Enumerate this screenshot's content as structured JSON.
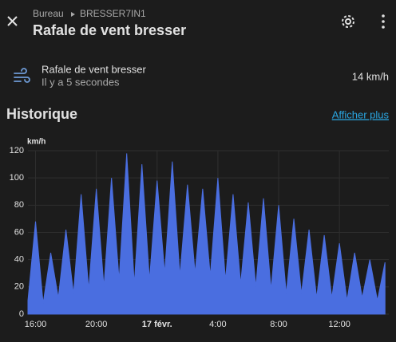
{
  "header": {
    "breadcrumb": [
      "Bureau",
      "BRESSER7IN1"
    ],
    "title": "Rafale de vent bresser"
  },
  "entity": {
    "name": "Rafale de vent bresser",
    "last_changed": "Il y a 5 secondes",
    "state": "14 km/h"
  },
  "history": {
    "title": "Historique",
    "link": "Afficher plus"
  },
  "chart_data": {
    "type": "area",
    "y_label": "km/h",
    "color": "#4a6ee0",
    "grid": true,
    "xlim": [
      15.5,
      39.25
    ],
    "xticks": [
      {
        "value": 16,
        "label": "16:00"
      },
      {
        "value": 20,
        "label": "20:00"
      },
      {
        "value": 24,
        "label": "17 févr."
      },
      {
        "value": 28,
        "label": "4:00"
      },
      {
        "value": 32,
        "label": "8:00"
      },
      {
        "value": 36,
        "label": "12:00"
      }
    ],
    "ylim": [
      0,
      120
    ],
    "yticks": [
      0,
      20,
      40,
      60,
      80,
      100,
      120
    ],
    "x": [
      15.5,
      16,
      16.5,
      17,
      17.5,
      18,
      18.5,
      19,
      19.5,
      20,
      20.5,
      21,
      21.5,
      22,
      22.5,
      23,
      23.5,
      24,
      24.5,
      25,
      25.5,
      26,
      26.5,
      27,
      27.5,
      28,
      28.5,
      29,
      29.5,
      30,
      30.5,
      31,
      31.5,
      32,
      32.5,
      33,
      33.5,
      34,
      34.5,
      35,
      35.5,
      36,
      36.5,
      37,
      37.5,
      38,
      38.5,
      39
    ],
    "values": [
      10,
      68,
      8,
      45,
      12,
      62,
      15,
      88,
      18,
      92,
      20,
      100,
      25,
      118,
      22,
      110,
      25,
      98,
      30,
      112,
      28,
      95,
      30,
      92,
      28,
      100,
      25,
      88,
      22,
      82,
      20,
      85,
      18,
      80,
      15,
      70,
      15,
      62,
      12,
      58,
      12,
      52,
      10,
      45,
      12,
      40,
      10,
      38
    ]
  }
}
